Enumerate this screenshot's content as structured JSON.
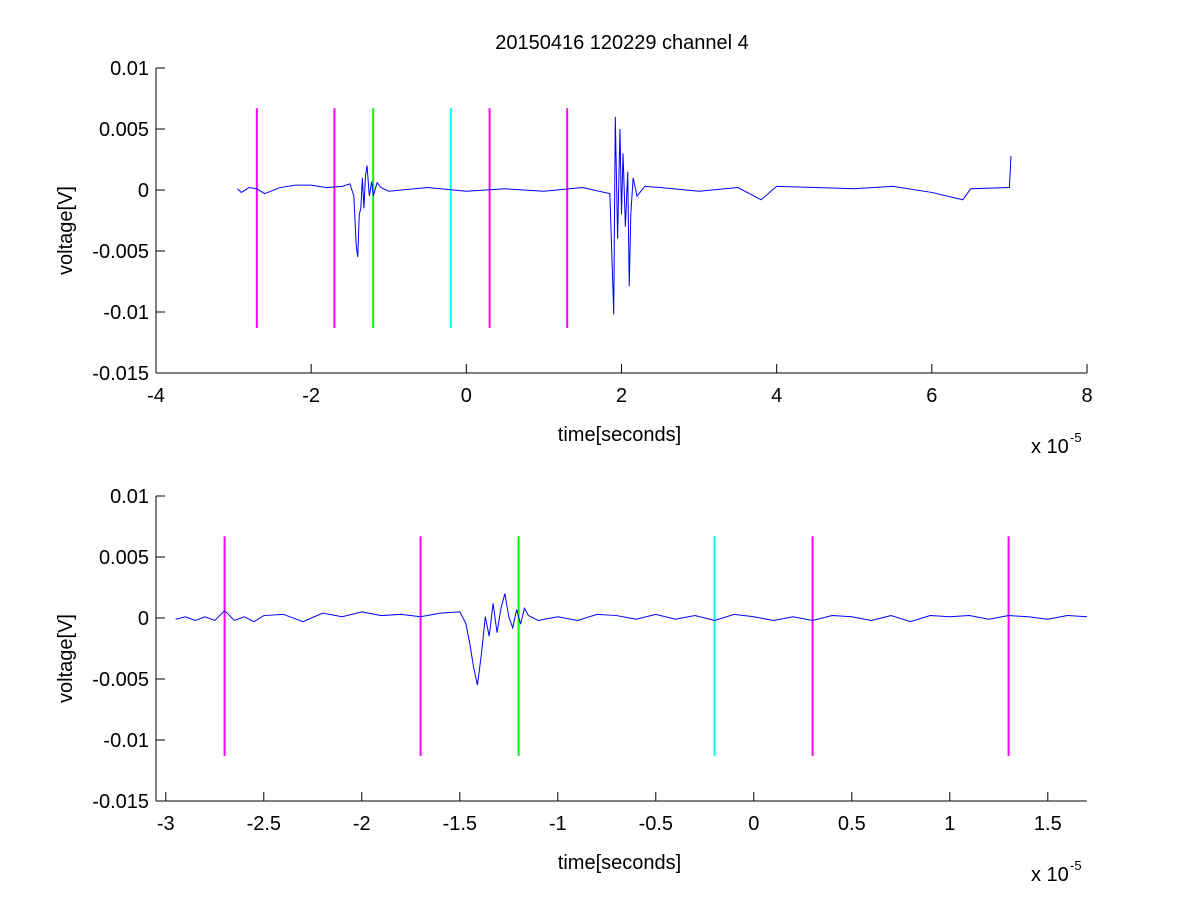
{
  "figure": {
    "title": "20150416 120229 channel 4"
  },
  "chart_data": [
    {
      "type": "line",
      "title": "20150416 120229 channel 4",
      "xlabel": "time[seconds]",
      "ylabel": "voltage[V]",
      "x_multiplier_label": "x 10",
      "x_multiplier_exponent": "-5",
      "xlim": [
        -4,
        8
      ],
      "ylim": [
        -0.015,
        0.01
      ],
      "x_ticks": [
        -4,
        -2,
        0,
        2,
        4,
        6,
        8
      ],
      "x_tick_labels": [
        "-4",
        "-2",
        "0",
        "2",
        "4",
        "6",
        "8"
      ],
      "y_ticks": [
        -0.015,
        -0.01,
        -0.005,
        0,
        0.005,
        0.01
      ],
      "y_tick_labels": [
        "-0.015",
        "-0.01",
        "-0.005",
        "0",
        "0.005",
        "0.01"
      ],
      "grid": false,
      "markers": [
        {
          "x": -2.7,
          "color": "#ff00ff"
        },
        {
          "x": -1.7,
          "color": "#ff00ff"
        },
        {
          "x": -1.2,
          "color": "#00ff00"
        },
        {
          "x": -0.2,
          "color": "#00ffff"
        },
        {
          "x": 0.3,
          "color": "#ff00ff"
        },
        {
          "x": 1.3,
          "color": "#ff00ff"
        }
      ],
      "marker_range": [
        -0.0113,
        0.0067
      ],
      "series": [
        {
          "color": "#0000ff",
          "points": [
            [
              -2.95,
              0.0001
            ],
            [
              -2.9,
              -0.0002
            ],
            [
              -2.8,
              0.0002
            ],
            [
              -2.7,
              0.0001
            ],
            [
              -2.6,
              -0.0003
            ],
            [
              -2.4,
              0.0002
            ],
            [
              -2.2,
              0.0004
            ],
            [
              -2.0,
              0.0004
            ],
            [
              -1.8,
              0.0002
            ],
            [
              -1.6,
              0.0003
            ],
            [
              -1.5,
              0.0005
            ],
            [
              -1.45,
              -0.0005
            ],
            [
              -1.42,
              -0.0045
            ],
            [
              -1.4,
              -0.0055
            ],
            [
              -1.38,
              -0.002
            ],
            [
              -1.36,
              -0.0015
            ],
            [
              -1.34,
              0.001
            ],
            [
              -1.32,
              -0.0015
            ],
            [
              -1.3,
              0.0012
            ],
            [
              -1.28,
              0.002
            ],
            [
              -1.25,
              -0.0005
            ],
            [
              -1.22,
              0.0007
            ],
            [
              -1.2,
              -0.0005
            ],
            [
              -1.15,
              0.0006
            ],
            [
              -1.1,
              0.0002
            ],
            [
              -1.0,
              -0.0001
            ],
            [
              -0.5,
              0.0002
            ],
            [
              0,
              -0.0001
            ],
            [
              0.5,
              0.0001
            ],
            [
              1.0,
              -0.0001
            ],
            [
              1.5,
              0.0002
            ],
            [
              1.85,
              -0.0003
            ],
            [
              1.9,
              -0.0102
            ],
            [
              1.92,
              0.006
            ],
            [
              1.95,
              -0.004
            ],
            [
              1.98,
              0.005
            ],
            [
              2.0,
              -0.002
            ],
            [
              2.02,
              0.003
            ],
            [
              2.05,
              -0.003
            ],
            [
              2.08,
              0.0015
            ],
            [
              2.1,
              -0.0079
            ],
            [
              2.12,
              -0.002
            ],
            [
              2.15,
              0.001
            ],
            [
              2.2,
              -0.0005
            ],
            [
              2.3,
              0.0003
            ],
            [
              2.5,
              0.0002
            ],
            [
              3.0,
              -0.0001
            ],
            [
              3.5,
              0.0002
            ],
            [
              3.8,
              -0.0008
            ],
            [
              4.0,
              0.0003
            ],
            [
              4.5,
              0.0002
            ],
            [
              5.0,
              0.0001
            ],
            [
              5.5,
              0.0003
            ],
            [
              6.0,
              -0.0002
            ],
            [
              6.4,
              -0.0008
            ],
            [
              6.5,
              0.0001
            ],
            [
              7.0,
              0.0002
            ],
            [
              7.02,
              0.0028
            ]
          ]
        }
      ]
    },
    {
      "type": "line",
      "title": "",
      "xlabel": "time[seconds]",
      "ylabel": "voltage[V]",
      "x_multiplier_label": "x 10",
      "x_multiplier_exponent": "-5",
      "xlim": [
        -3.05,
        1.7
      ],
      "ylim": [
        -0.015,
        0.01
      ],
      "x_ticks": [
        -3,
        -2.5,
        -2,
        -1.5,
        -1,
        -0.5,
        0,
        0.5,
        1,
        1.5
      ],
      "x_tick_labels": [
        "-3",
        "-2.5",
        "-2",
        "-1.5",
        "-1",
        "-0.5",
        "0",
        "0.5",
        "1",
        "1.5"
      ],
      "y_ticks": [
        -0.015,
        -0.01,
        -0.005,
        0,
        0.005,
        0.01
      ],
      "y_tick_labels": [
        "-0.015",
        "-0.01",
        "-0.005",
        "0",
        "0.005",
        "0.01"
      ],
      "grid": false,
      "markers": [
        {
          "x": -2.7,
          "color": "#ff00ff"
        },
        {
          "x": -1.7,
          "color": "#ff00ff"
        },
        {
          "x": -1.2,
          "color": "#00ff00"
        },
        {
          "x": -0.2,
          "color": "#00ffff"
        },
        {
          "x": 0.3,
          "color": "#ff00ff"
        },
        {
          "x": 1.3,
          "color": "#ff00ff"
        }
      ],
      "marker_range": [
        -0.0113,
        0.0067
      ],
      "series": [
        {
          "color": "#0000ff",
          "points": [
            [
              -2.95,
              -0.0001
            ],
            [
              -2.9,
              0.0001
            ],
            [
              -2.85,
              -0.0002
            ],
            [
              -2.8,
              0.0001
            ],
            [
              -2.75,
              -0.0002
            ],
            [
              -2.7,
              0.0006
            ],
            [
              -2.65,
              -0.0002
            ],
            [
              -2.6,
              0.0001
            ],
            [
              -2.55,
              -0.0003
            ],
            [
              -2.5,
              0.0002
            ],
            [
              -2.4,
              0.0003
            ],
            [
              -2.3,
              -0.0003
            ],
            [
              -2.2,
              0.0004
            ],
            [
              -2.1,
              0.0001
            ],
            [
              -2.0,
              0.0005
            ],
            [
              -1.9,
              0.0002
            ],
            [
              -1.8,
              0.0003
            ],
            [
              -1.7,
              0.0001
            ],
            [
              -1.6,
              0.0004
            ],
            [
              -1.5,
              0.0005
            ],
            [
              -1.47,
              -0.0004
            ],
            [
              -1.45,
              -0.002
            ],
            [
              -1.43,
              -0.004
            ],
            [
              -1.41,
              -0.0055
            ],
            [
              -1.39,
              -0.003
            ],
            [
              -1.37,
              0.0001
            ],
            [
              -1.35,
              -0.0015
            ],
            [
              -1.33,
              0.0012
            ],
            [
              -1.31,
              -0.0012
            ],
            [
              -1.29,
              0.0008
            ],
            [
              -1.27,
              0.002
            ],
            [
              -1.25,
              0.0001
            ],
            [
              -1.23,
              -0.0008
            ],
            [
              -1.21,
              0.0007
            ],
            [
              -1.19,
              -0.0005
            ],
            [
              -1.17,
              0.0008
            ],
            [
              -1.15,
              0.0002
            ],
            [
              -1.1,
              -0.0002
            ],
            [
              -1.0,
              0.0001
            ],
            [
              -0.9,
              -0.0002
            ],
            [
              -0.8,
              0.0003
            ],
            [
              -0.7,
              0.0002
            ],
            [
              -0.6,
              -0.0001
            ],
            [
              -0.5,
              0.0003
            ],
            [
              -0.4,
              -0.0001
            ],
            [
              -0.3,
              0.0002
            ],
            [
              -0.2,
              -0.0002
            ],
            [
              -0.1,
              0.0003
            ],
            [
              0,
              0.0001
            ],
            [
              0.1,
              -0.0002
            ],
            [
              0.2,
              0.0001
            ],
            [
              0.3,
              -0.0002
            ],
            [
              0.4,
              0.0002
            ],
            [
              0.5,
              0.0001
            ],
            [
              0.6,
              -0.0002
            ],
            [
              0.7,
              0.0002
            ],
            [
              0.8,
              -0.0003
            ],
            [
              0.9,
              0.0002
            ],
            [
              1.0,
              0.0001
            ],
            [
              1.1,
              0.0002
            ],
            [
              1.2,
              -0.0001
            ],
            [
              1.3,
              0.0002
            ],
            [
              1.4,
              0.0001
            ],
            [
              1.5,
              -0.0001
            ],
            [
              1.6,
              0.0002
            ],
            [
              1.7,
              0.0001
            ]
          ]
        }
      ]
    }
  ]
}
